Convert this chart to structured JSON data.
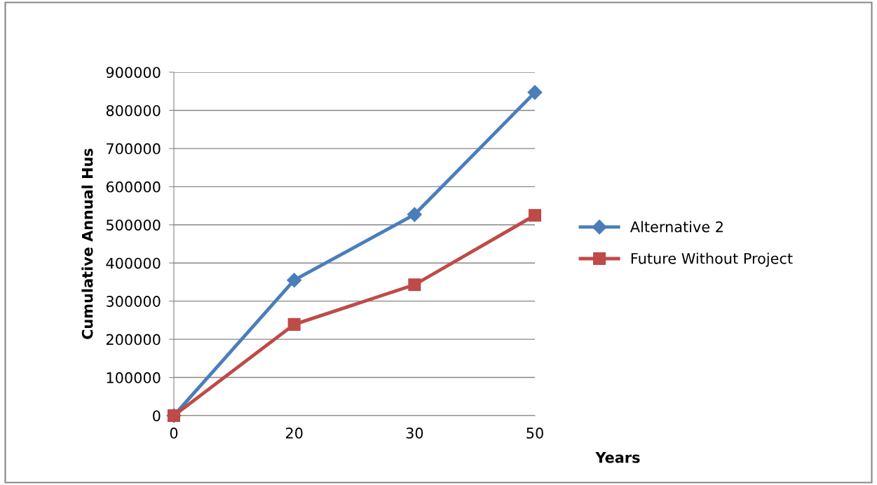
{
  "chart_data": {
    "type": "line",
    "xlabel": "Years",
    "ylabel": "Cumulative Annual Hus",
    "categories": [
      "0",
      "20",
      "30",
      "50"
    ],
    "series": [
      {
        "name": "Alternative 2",
        "color": "#4a7ebb",
        "marker": "diamond",
        "values": [
          0,
          355000,
          527000,
          847000
        ]
      },
      {
        "name": "Future Without Project",
        "color": "#be4b48",
        "marker": "square",
        "values": [
          0,
          239000,
          343000,
          525000
        ]
      }
    ],
    "ylim": [
      0,
      900000
    ],
    "yticks": [
      0,
      100000,
      200000,
      300000,
      400000,
      500000,
      600000,
      700000,
      800000,
      900000
    ],
    "grid": "y",
    "legend": "right"
  }
}
